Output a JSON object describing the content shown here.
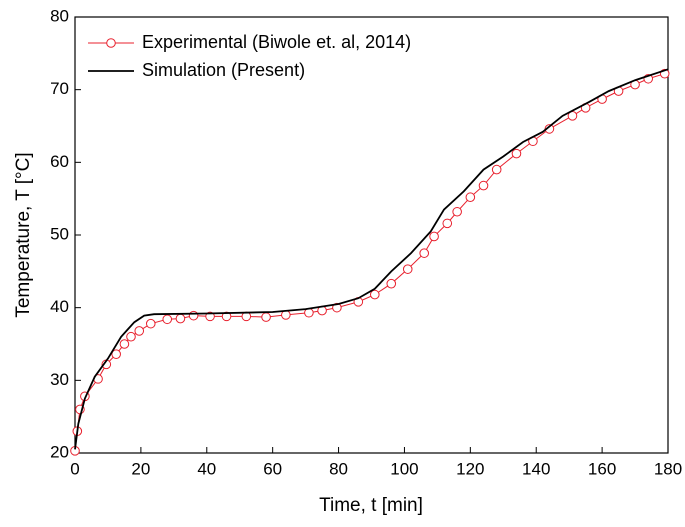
{
  "chart_data": {
    "type": "line",
    "x_label": "Time, t [min]",
    "y_label": "Temperature, T [°C]",
    "xlim": [
      0,
      180
    ],
    "xticks": [
      0,
      20,
      40,
      60,
      80,
      100,
      120,
      140,
      160,
      180
    ],
    "ylim": [
      20,
      80
    ],
    "yticks": [
      20,
      30,
      40,
      50,
      60,
      70,
      80
    ],
    "legend": "upper left",
    "series": [
      {
        "name": "Experimental (Biwole et. al, 2014)",
        "color": "#e8212e",
        "marker": "circle",
        "x": [
          0,
          0.7,
          1.5,
          3,
          7,
          9.5,
          12.5,
          15,
          17,
          19.5,
          23,
          28,
          32,
          36,
          41,
          46,
          52,
          58,
          64,
          71,
          75,
          79.5,
          86,
          91,
          96,
          101,
          106,
          109,
          113,
          116,
          120,
          124,
          128,
          134,
          139,
          144,
          151,
          155,
          160,
          165,
          170,
          174,
          179
        ],
        "values": [
          20.3,
          23,
          26,
          27.8,
          30.2,
          32.2,
          33.6,
          35,
          36,
          36.8,
          37.8,
          38.4,
          38.5,
          38.9,
          38.8,
          38.8,
          38.8,
          38.7,
          39,
          39.3,
          39.6,
          40,
          40.8,
          41.8,
          43.3,
          45.3,
          47.5,
          49.8,
          51.6,
          53.2,
          55.2,
          56.8,
          59,
          61.2,
          62.9,
          64.6,
          66.4,
          67.5,
          68.7,
          69.8,
          70.7,
          71.5,
          72.2
        ]
      },
      {
        "name": "Simulation (Present)",
        "color": "#000000",
        "marker": "none",
        "x": [
          0,
          1,
          3,
          6,
          10,
          14,
          18,
          21,
          24,
          40,
          60,
          70,
          80,
          86,
          91,
          96,
          102,
          108,
          112,
          118,
          124,
          130,
          136,
          142,
          148,
          156,
          162,
          170,
          180
        ],
        "values": [
          20.5,
          24,
          27.5,
          30.5,
          33,
          36,
          38,
          38.9,
          39.1,
          39.2,
          39.4,
          39.8,
          40.5,
          41.3,
          42.6,
          45,
          47.5,
          50.5,
          53.5,
          56,
          59,
          60.8,
          62.8,
          64.2,
          66.4,
          68.3,
          69.8,
          71.3,
          72.8
        ]
      }
    ]
  }
}
